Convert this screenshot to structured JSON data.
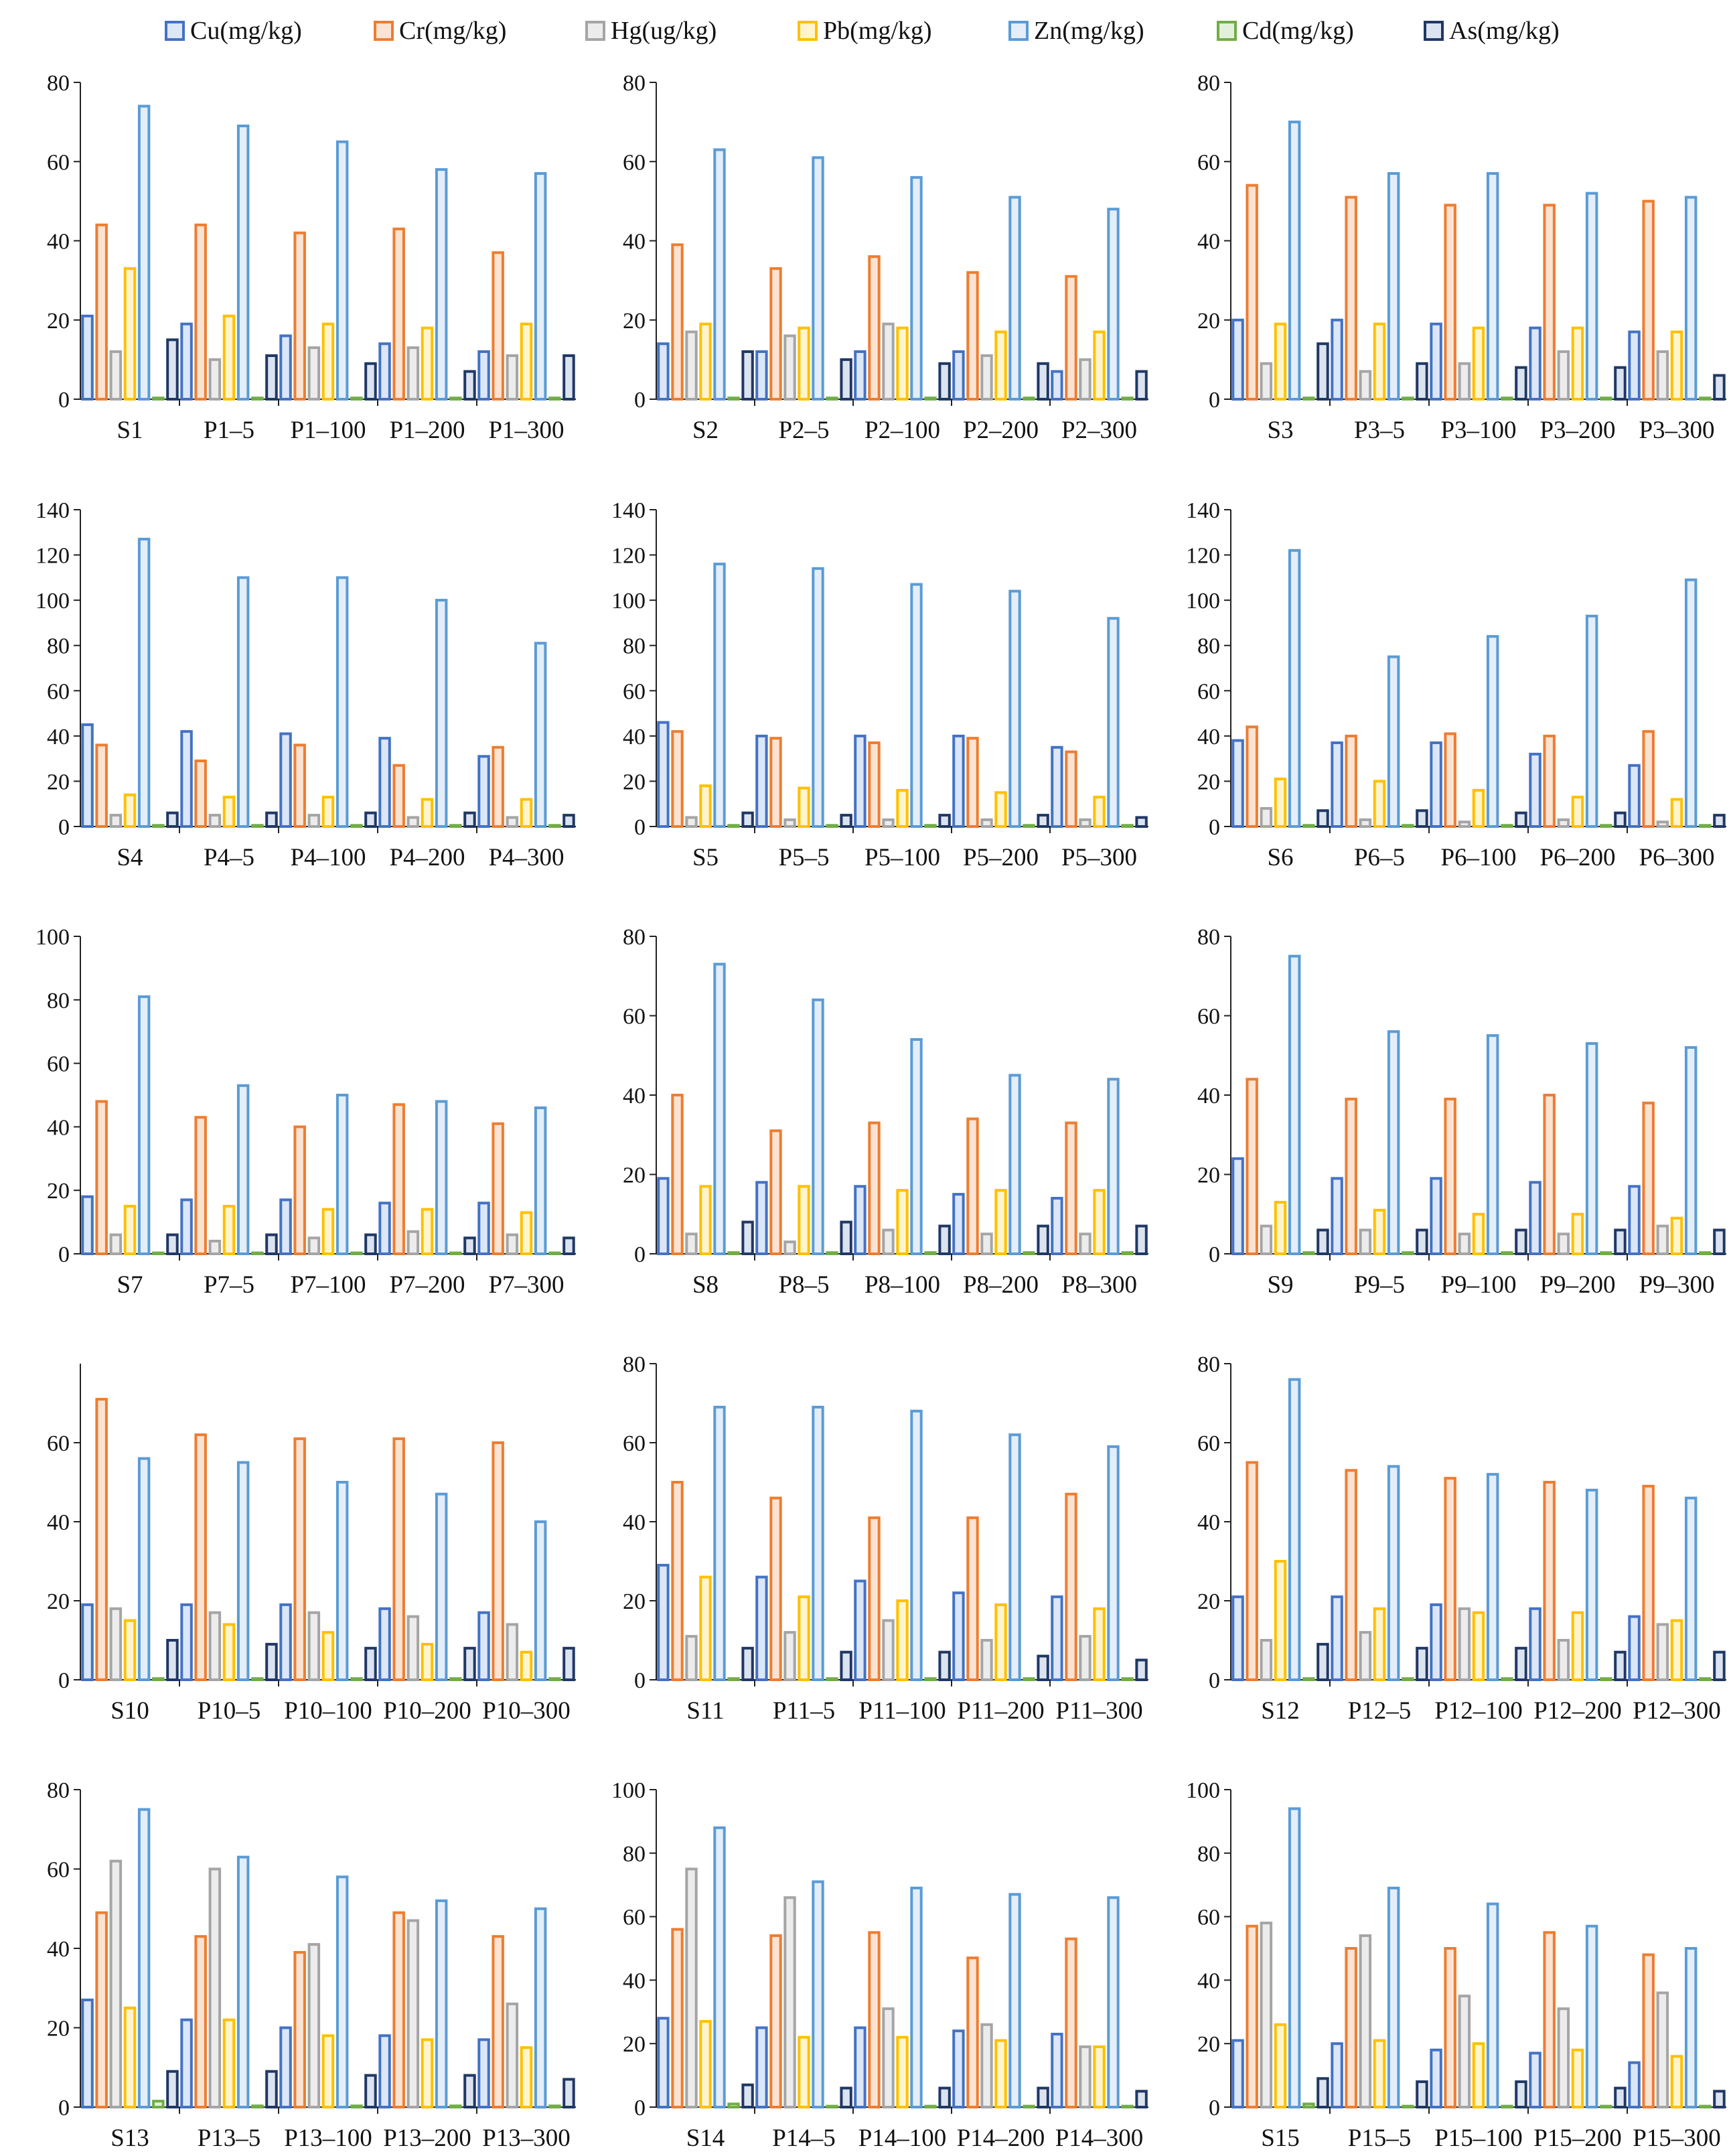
{
  "chart_data": {
    "type": "bar",
    "legend": {
      "position": "top",
      "entries": [
        "Cu(mg/kg)",
        "Cr(mg/kg)",
        "Hg(ug/kg)",
        "Pb(mg/kg)",
        "Zn(mg/kg)",
        "Cd(mg/kg)",
        "As(mg/kg)"
      ]
    },
    "series_styles": [
      {
        "name": "Cu(mg/kg)",
        "fill": "#dbe6f7",
        "stroke": "#4472c4"
      },
      {
        "name": "Cr(mg/kg)",
        "fill": "#fbe3d3",
        "stroke": "#ed7d31"
      },
      {
        "name": "Hg(ug/kg)",
        "fill": "#ececec",
        "stroke": "#a5a5a5"
      },
      {
        "name": "Pb(mg/kg)",
        "fill": "#fff4cc",
        "stroke": "#ffc000"
      },
      {
        "name": "Zn(mg/kg)",
        "fill": "#e3eef9",
        "stroke": "#5b9bd5"
      },
      {
        "name": "Cd(mg/kg)",
        "fill": "#e2f0d9",
        "stroke": "#70ad47"
      },
      {
        "name": "As(mg/kg)",
        "fill": "#dbe3f1",
        "stroke": "#203864"
      }
    ],
    "panels": [
      {
        "id": 1,
        "ylim": [
          0,
          80
        ],
        "yticks": [
          0,
          20,
          40,
          60,
          80
        ],
        "categories": [
          "S1",
          "P1–5",
          "P1–100",
          "P1–200",
          "P1–300"
        ],
        "values": [
          [
            21,
            44,
            12,
            33,
            74,
            0.3,
            15
          ],
          [
            19,
            44,
            10,
            21,
            69,
            0.3,
            11
          ],
          [
            16,
            42,
            13,
            19,
            65,
            0.3,
            9
          ],
          [
            14,
            43,
            13,
            18,
            58,
            0.3,
            7
          ],
          [
            12,
            37,
            11,
            19,
            57,
            0.3,
            11
          ]
        ]
      },
      {
        "id": 2,
        "ylim": [
          0,
          80
        ],
        "yticks": [
          0,
          20,
          40,
          60,
          80
        ],
        "categories": [
          "S2",
          "P2–5",
          "P2–100",
          "P2–200",
          "P2–300"
        ],
        "values": [
          [
            14,
            39,
            17,
            19,
            63,
            0.3,
            12
          ],
          [
            12,
            33,
            16,
            18,
            61,
            0.3,
            10
          ],
          [
            12,
            36,
            19,
            18,
            56,
            0.3,
            9
          ],
          [
            12,
            32,
            11,
            17,
            51,
            0.3,
            9
          ],
          [
            7,
            31,
            10,
            17,
            48,
            0.3,
            7
          ]
        ]
      },
      {
        "id": 3,
        "ylim": [
          0,
          80
        ],
        "yticks": [
          0,
          20,
          40,
          60,
          80
        ],
        "categories": [
          "S3",
          "P3–5",
          "P3–100",
          "P3–200",
          "P3–300"
        ],
        "values": [
          [
            20,
            54,
            9,
            19,
            70,
            0.3,
            14
          ],
          [
            20,
            51,
            7,
            19,
            57,
            0.3,
            9
          ],
          [
            19,
            49,
            9,
            18,
            57,
            0.3,
            8
          ],
          [
            18,
            49,
            12,
            18,
            52,
            0.3,
            8
          ],
          [
            17,
            50,
            12,
            17,
            51,
            0.3,
            6
          ]
        ]
      },
      {
        "id": 4,
        "ylim": [
          0,
          140
        ],
        "yticks": [
          0,
          20,
          40,
          60,
          80,
          100,
          120,
          140
        ],
        "categories": [
          "S4",
          "P4–5",
          "P4–100",
          "P4–200",
          "P4–300"
        ],
        "values": [
          [
            45,
            36,
            5,
            14,
            127,
            0.5,
            6
          ],
          [
            42,
            29,
            5,
            13,
            110,
            0.5,
            6
          ],
          [
            41,
            36,
            5,
            13,
            110,
            0.5,
            6
          ],
          [
            39,
            27,
            4,
            12,
            100,
            0.5,
            6
          ],
          [
            31,
            35,
            4,
            12,
            81,
            0.5,
            5
          ]
        ]
      },
      {
        "id": 5,
        "ylim": [
          0,
          140
        ],
        "yticks": [
          0,
          20,
          40,
          60,
          80,
          100,
          120,
          140
        ],
        "categories": [
          "S5",
          "P5–5",
          "P5–100",
          "P5–200",
          "P5–300"
        ],
        "values": [
          [
            46,
            42,
            4,
            18,
            116,
            0.5,
            6
          ],
          [
            40,
            39,
            3,
            17,
            114,
            0.5,
            5
          ],
          [
            40,
            37,
            3,
            16,
            107,
            0.5,
            5
          ],
          [
            40,
            39,
            3,
            15,
            104,
            0.5,
            5
          ],
          [
            35,
            33,
            3,
            13,
            92,
            0.5,
            4
          ]
        ]
      },
      {
        "id": 6,
        "ylim": [
          0,
          140
        ],
        "yticks": [
          0,
          20,
          40,
          60,
          80,
          100,
          120,
          140
        ],
        "categories": [
          "S6",
          "P6–5",
          "P6–100",
          "P6–200",
          "P6–300"
        ],
        "values": [
          [
            38,
            44,
            8,
            21,
            122,
            0.5,
            7
          ],
          [
            37,
            40,
            3,
            20,
            75,
            0.5,
            7
          ],
          [
            37,
            41,
            2,
            16,
            84,
            0.5,
            6
          ],
          [
            32,
            40,
            3,
            13,
            93,
            0.5,
            6
          ],
          [
            27,
            42,
            2,
            12,
            109,
            0.5,
            5
          ]
        ]
      },
      {
        "id": 7,
        "ylim": [
          0,
          100
        ],
        "yticks": [
          0,
          20,
          40,
          60,
          80,
          100
        ],
        "categories": [
          "S7",
          "P7–5",
          "P7–100",
          "P7–200",
          "P7–300"
        ],
        "values": [
          [
            18,
            48,
            6,
            15,
            81,
            0.3,
            6
          ],
          [
            17,
            43,
            4,
            15,
            53,
            0.3,
            6
          ],
          [
            17,
            40,
            5,
            14,
            50,
            0.3,
            6
          ],
          [
            16,
            47,
            7,
            14,
            48,
            0.3,
            5
          ],
          [
            16,
            41,
            6,
            13,
            46,
            0.3,
            5
          ]
        ]
      },
      {
        "id": 8,
        "ylim": [
          0,
          80
        ],
        "yticks": [
          0,
          20,
          40,
          60,
          80
        ],
        "categories": [
          "S8",
          "P8–5",
          "P8–100",
          "P8–200",
          "P8–300"
        ],
        "values": [
          [
            19,
            40,
            5,
            17,
            73,
            0.3,
            8
          ],
          [
            18,
            31,
            3,
            17,
            64,
            0.3,
            8
          ],
          [
            17,
            33,
            6,
            16,
            54,
            0.3,
            7
          ],
          [
            15,
            34,
            5,
            16,
            45,
            0.3,
            7
          ],
          [
            14,
            33,
            5,
            16,
            44,
            0.3,
            7
          ]
        ]
      },
      {
        "id": 9,
        "ylim": [
          0,
          80
        ],
        "yticks": [
          0,
          20,
          40,
          60,
          80
        ],
        "categories": [
          "S9",
          "P9–5",
          "P9–100",
          "P9–200",
          "P9–300"
        ],
        "values": [
          [
            24,
            44,
            7,
            13,
            75,
            0.3,
            6
          ],
          [
            19,
            39,
            6,
            11,
            56,
            0.3,
            6
          ],
          [
            19,
            39,
            5,
            10,
            55,
            0.3,
            6
          ],
          [
            18,
            40,
            5,
            10,
            53,
            0.3,
            6
          ],
          [
            17,
            38,
            7,
            9,
            52,
            0.3,
            6
          ]
        ]
      },
      {
        "id": 10,
        "ylim": [
          0,
          80
        ],
        "yticks": [
          0,
          20,
          40,
          60
        ],
        "categories": [
          "S10",
          "P10–5",
          "P10–100",
          "P10–200",
          "P10–300"
        ],
        "values": [
          [
            19,
            71,
            18,
            15,
            56,
            0.3,
            10
          ],
          [
            19,
            62,
            17,
            14,
            55,
            0.3,
            9
          ],
          [
            19,
            61,
            17,
            12,
            50,
            0.3,
            8
          ],
          [
            18,
            61,
            16,
            9,
            47,
            0.3,
            8
          ],
          [
            17,
            60,
            14,
            7,
            40,
            0.3,
            8
          ]
        ]
      },
      {
        "id": 11,
        "ylim": [
          0,
          80
        ],
        "yticks": [
          0,
          20,
          40,
          60,
          80
        ],
        "categories": [
          "S11",
          "P11–5",
          "P11–100",
          "P11–200",
          "P11–300"
        ],
        "values": [
          [
            29,
            50,
            11,
            26,
            69,
            0.3,
            8
          ],
          [
            26,
            46,
            12,
            21,
            69,
            0.3,
            7
          ],
          [
            25,
            41,
            15,
            20,
            68,
            0.3,
            7
          ],
          [
            22,
            41,
            10,
            19,
            62,
            0.3,
            6
          ],
          [
            21,
            47,
            11,
            18,
            59,
            0.3,
            5
          ]
        ]
      },
      {
        "id": 12,
        "ylim": [
          0,
          80
        ],
        "yticks": [
          0,
          20,
          40,
          60,
          80
        ],
        "categories": [
          "S12",
          "P12–5",
          "P12–100",
          "P12–200",
          "P12–300"
        ],
        "values": [
          [
            21,
            55,
            10,
            30,
            76,
            0.3,
            9
          ],
          [
            21,
            53,
            12,
            18,
            54,
            0.3,
            8
          ],
          [
            19,
            51,
            18,
            17,
            52,
            0.3,
            8
          ],
          [
            18,
            50,
            10,
            17,
            48,
            0.3,
            7
          ],
          [
            16,
            49,
            14,
            15,
            46,
            0.3,
            7
          ]
        ]
      },
      {
        "id": 13,
        "ylim": [
          0,
          80
        ],
        "yticks": [
          0,
          20,
          40,
          60,
          80
        ],
        "categories": [
          "S13",
          "P13–5",
          "P13–100",
          "P13–200",
          "P13–300"
        ],
        "values": [
          [
            27,
            49,
            62,
            25,
            75,
            1.5,
            9
          ],
          [
            22,
            43,
            60,
            22,
            63,
            0.3,
            9
          ],
          [
            20,
            39,
            41,
            18,
            58,
            0.3,
            8
          ],
          [
            18,
            49,
            47,
            17,
            52,
            0.3,
            8
          ],
          [
            17,
            43,
            26,
            15,
            50,
            0.3,
            7
          ]
        ]
      },
      {
        "id": 14,
        "ylim": [
          0,
          100
        ],
        "yticks": [
          0,
          20,
          40,
          60,
          80,
          100
        ],
        "categories": [
          "S14",
          "P14–5",
          "P14–100",
          "P14–200",
          "P14–300"
        ],
        "values": [
          [
            28,
            56,
            75,
            27,
            88,
            1,
            7
          ],
          [
            25,
            54,
            66,
            22,
            71,
            0.3,
            6
          ],
          [
            25,
            55,
            31,
            22,
            69,
            0.3,
            6
          ],
          [
            24,
            47,
            26,
            21,
            67,
            0.3,
            6
          ],
          [
            23,
            53,
            19,
            19,
            66,
            0.3,
            5
          ]
        ]
      },
      {
        "id": 15,
        "ylim": [
          0,
          100
        ],
        "yticks": [
          0,
          20,
          40,
          60,
          80,
          100
        ],
        "categories": [
          "S15",
          "P15–5",
          "P15–100",
          "P15–200",
          "P15–300"
        ],
        "values": [
          [
            21,
            57,
            58,
            26,
            94,
            1,
            9
          ],
          [
            20,
            50,
            54,
            21,
            69,
            0.3,
            8
          ],
          [
            18,
            50,
            35,
            20,
            64,
            0.3,
            8
          ],
          [
            17,
            55,
            31,
            18,
            57,
            0.3,
            6
          ],
          [
            14,
            48,
            36,
            16,
            50,
            0.3,
            5
          ]
        ]
      }
    ]
  }
}
